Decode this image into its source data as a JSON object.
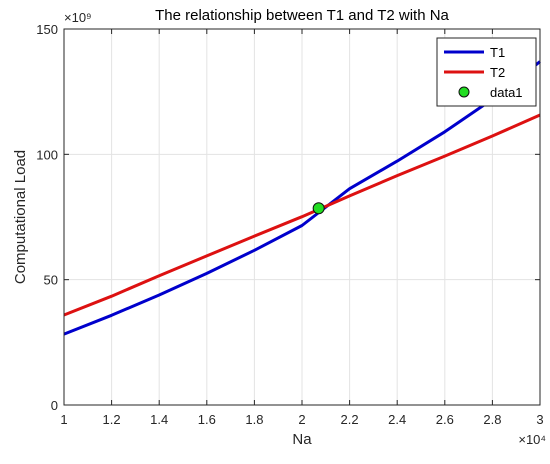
{
  "chart_data": {
    "type": "line",
    "title": "The relationship between T1 and T2 with Na",
    "xlabel": "Na",
    "ylabel": "Computational Load",
    "x_exponent_label": "×10⁴",
    "y_exponent_label": "×10⁹",
    "xlim": [
      10000,
      30000
    ],
    "ylim": [
      0,
      150000000000
    ],
    "x_ticks": [
      10000,
      12000,
      14000,
      16000,
      18000,
      20000,
      22000,
      24000,
      26000,
      28000,
      30000
    ],
    "x_tick_labels": [
      "1",
      "1.2",
      "1.4",
      "1.6",
      "1.8",
      "2",
      "2.2",
      "2.4",
      "2.6",
      "2.8",
      "3"
    ],
    "y_ticks": [
      0,
      50000000000,
      100000000000,
      150000000000
    ],
    "y_tick_labels": [
      "0",
      "50",
      "100",
      "150"
    ],
    "grid": true,
    "legend_position": "top-right",
    "series": [
      {
        "name": "T1",
        "color": "#0000cc",
        "x": [
          10000,
          12000,
          14000,
          16000,
          18000,
          20000,
          22000,
          24000,
          26000,
          28000,
          30000
        ],
        "y": [
          28300000000,
          35800000000,
          43900000000,
          52500000000,
          61700000000,
          71600000000,
          86300000000,
          97300000000,
          109000000000,
          122000000000,
          137000000000
        ]
      },
      {
        "name": "T2",
        "color": "#dd1111",
        "x": [
          10000,
          12000,
          14000,
          16000,
          18000,
          20000,
          22000,
          24000,
          26000,
          28000,
          30000
        ],
        "y": [
          35900000000,
          43400000000,
          51600000000,
          59500000000,
          67400000000,
          75100000000,
          83400000000,
          91500000000,
          99300000000,
          107300000000,
          115700000000
        ]
      }
    ],
    "markers": [
      {
        "name": "data1",
        "color": "#22dd22",
        "x": 20700,
        "y": 78500000000
      }
    ]
  }
}
